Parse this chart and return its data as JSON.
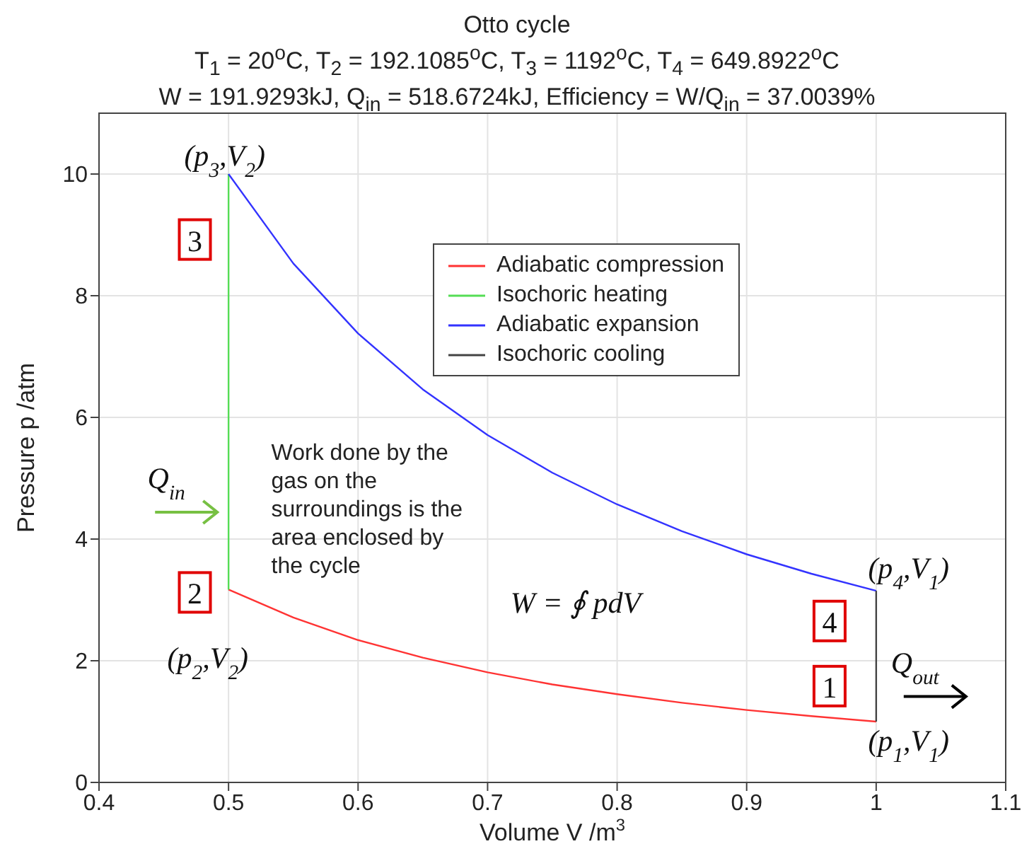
{
  "chart_data": {
    "type": "line",
    "title": "Otto cycle",
    "subtitle": "T$_{1}$ = 20$^{o}$C, T$_{2}$ = 192.1085$^{o}$C, T$_{3}$ = 1192$^{o}$C, T$_{4}$ = 649.8922$^{o}$C\nW = 191.9293kJ, Q$_{in}$ = 518.6724kJ, Efficiency = W/Q$_{in}$ = 37.0039%",
    "xlabel": "Volume V /m$^{3}$",
    "ylabel": "Pressure p /atm",
    "series": [
      {
        "name": "Adiabatic compression",
        "color": "#ff3333",
        "x": [
          1.0,
          0.95,
          0.9,
          0.85,
          0.8,
          0.75,
          0.7,
          0.65,
          0.6,
          0.55,
          0.5
        ],
        "values": [
          1.0,
          1.09,
          1.19,
          1.31,
          1.45,
          1.61,
          1.81,
          2.05,
          2.34,
          2.71,
          3.17
        ]
      },
      {
        "name": "Isochoric heating",
        "color": "#55dd55",
        "x": [
          0.5,
          0.5
        ],
        "values": [
          3.17,
          10.0
        ]
      },
      {
        "name": "Adiabatic expansion",
        "color": "#3333ff",
        "x": [
          0.5,
          0.55,
          0.6,
          0.65,
          0.7,
          0.75,
          0.8,
          0.85,
          0.9,
          0.95,
          1.0
        ],
        "values": [
          10.0,
          8.53,
          7.38,
          6.46,
          5.71,
          5.09,
          4.57,
          4.13,
          3.75,
          3.43,
          3.15
        ]
      },
      {
        "name": "Isochoric cooling",
        "color": "#444444",
        "x": [
          1.0,
          1.0
        ],
        "values": [
          3.15,
          1.0
        ]
      }
    ],
    "xlim": [
      0.4,
      1.1
    ],
    "xticks": [
      0.4,
      0.5,
      0.6,
      0.7,
      0.8,
      0.9,
      1,
      1.1
    ],
    "ylim": [
      0,
      11
    ],
    "yticks": [
      0,
      2,
      4,
      6,
      8,
      10
    ],
    "grid": true,
    "legend": "top right",
    "annotations": [
      "(p$_{3}$,V$_{2}$)",
      "3",
      "Q$_{in}$",
      "2",
      "(p$_{2}$,V$_{2}$)",
      "Work done by the\ngas on the\nsurroundings is the\narea enclosed by\nthe cycle",
      "W = ∮ pdV",
      "(p$_{4}$,V$_{1}$)",
      "4",
      "1",
      "Q$_{out}$",
      "(p$_{1}$,V$_{1}$)"
    ]
  }
}
